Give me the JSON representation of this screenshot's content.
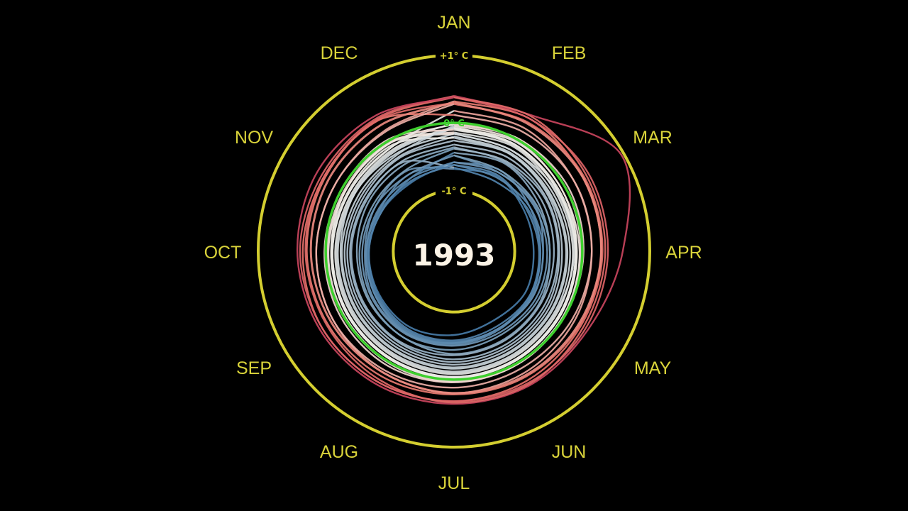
{
  "year": "1993",
  "rings": [
    {
      "label": "+1° C",
      "value": 1,
      "color": "#d4ce30"
    },
    {
      "label": "0° C",
      "value": 0,
      "color": "#3ecf2e"
    },
    {
      "label": "-1° C",
      "value": -1,
      "color": "#d4ce30"
    }
  ],
  "months": [
    "JAN",
    "FEB",
    "MAR",
    "APR",
    "MAY",
    "JUN",
    "JUL",
    "AUG",
    "SEP",
    "OCT",
    "NOV",
    "DEC"
  ],
  "colors": {
    "background": "#000000",
    "ring_outer": "#d4ce30",
    "ring_zero": "#3ecf2e",
    "month_text": "#d9d33a",
    "year_text": "#fbf3e6",
    "cool": "#2f6c9e",
    "neutral": "#f3efe8",
    "warm": "#e8756b",
    "hot": "#c33a5a"
  },
  "chart_data": {
    "type": "line",
    "subtype": "polar-spiral",
    "title": "",
    "theta": [
      "JAN",
      "FEB",
      "MAR",
      "APR",
      "MAY",
      "JUN",
      "JUL",
      "AUG",
      "SEP",
      "OCT",
      "NOV",
      "DEC"
    ],
    "r_range": [
      -1.9,
      1.0
    ],
    "r_ticks": [
      -1,
      0,
      1
    ],
    "series": [
      {
        "year": 1880,
        "values": [
          -0.48,
          -0.56,
          -0.52,
          -0.58,
          -0.55,
          -0.58,
          -0.54,
          -0.5,
          -0.52,
          -0.58,
          -0.56,
          -0.52
        ]
      },
      {
        "year": 1884,
        "values": [
          -0.68,
          -0.62,
          -0.7,
          -0.72,
          -0.68,
          -0.72,
          -0.66,
          -0.6,
          -0.62,
          -0.64,
          -0.68,
          -0.7
        ]
      },
      {
        "year": 1888,
        "values": [
          -0.58,
          -0.52,
          -0.6,
          -0.62,
          -0.58,
          -0.56,
          -0.52,
          -0.5,
          -0.56,
          -0.6,
          -0.64,
          -0.58
        ]
      },
      {
        "year": 1892,
        "values": [
          -0.62,
          -0.6,
          -0.66,
          -0.64,
          -0.6,
          -0.58,
          -0.56,
          -0.54,
          -0.58,
          -0.62,
          -0.68,
          -0.64
        ]
      },
      {
        "year": 1896,
        "values": [
          -0.44,
          -0.4,
          -0.46,
          -0.48,
          -0.42,
          -0.4,
          -0.38,
          -0.42,
          -0.44,
          -0.46,
          -0.44,
          -0.42
        ]
      },
      {
        "year": 1900,
        "values": [
          -0.36,
          -0.38,
          -0.4,
          -0.42,
          -0.4,
          -0.38,
          -0.36,
          -0.34,
          -0.36,
          -0.38,
          -0.4,
          -0.38
        ]
      },
      {
        "year": 1904,
        "values": [
          -0.66,
          -0.7,
          -0.64,
          -0.62,
          -0.6,
          -0.62,
          -0.58,
          -0.56,
          -0.6,
          -0.64,
          -0.66,
          -0.68
        ]
      },
      {
        "year": 1908,
        "values": [
          -0.62,
          -0.64,
          -0.6,
          -0.58,
          -0.56,
          -0.58,
          -0.54,
          -0.52,
          -0.56,
          -0.6,
          -0.62,
          -0.64
        ]
      },
      {
        "year": 1912,
        "values": [
          -0.58,
          -0.56,
          -0.54,
          -0.52,
          -0.5,
          -0.52,
          -0.5,
          -0.48,
          -0.5,
          -0.54,
          -0.56,
          -0.58
        ]
      },
      {
        "year": 1916,
        "values": [
          -0.48,
          -0.52,
          -0.5,
          -0.48,
          -0.46,
          -0.48,
          -0.44,
          -0.42,
          -0.46,
          -0.5,
          -0.52,
          -0.5
        ]
      },
      {
        "year": 1920,
        "values": [
          -0.38,
          -0.36,
          -0.34,
          -0.36,
          -0.34,
          -0.32,
          -0.3,
          -0.32,
          -0.34,
          -0.36,
          -0.38,
          -0.36
        ]
      },
      {
        "year": 1924,
        "values": [
          -0.32,
          -0.3,
          -0.32,
          -0.34,
          -0.3,
          -0.28,
          -0.26,
          -0.28,
          -0.3,
          -0.32,
          -0.34,
          -0.3
        ]
      },
      {
        "year": 1928,
        "values": [
          -0.26,
          -0.24,
          -0.28,
          -0.3,
          -0.26,
          -0.24,
          -0.22,
          -0.24,
          -0.26,
          -0.28,
          -0.3,
          -0.28
        ]
      },
      {
        "year": 1932,
        "values": [
          -0.2,
          -0.22,
          -0.24,
          -0.22,
          -0.2,
          -0.18,
          -0.16,
          -0.18,
          -0.2,
          -0.22,
          -0.2,
          -0.22
        ]
      },
      {
        "year": 1936,
        "values": [
          -0.16,
          -0.18,
          -0.14,
          -0.12,
          -0.14,
          -0.12,
          -0.1,
          -0.12,
          -0.14,
          -0.16,
          -0.18,
          -0.16
        ]
      },
      {
        "year": 1940,
        "values": [
          -0.08,
          -0.04,
          -0.06,
          -0.08,
          -0.06,
          -0.04,
          -0.02,
          -0.04,
          -0.06,
          -0.08,
          -0.06,
          -0.04
        ]
      },
      {
        "year": 1944,
        "values": [
          -0.02,
          0.02,
          0.0,
          -0.02,
          0.0,
          0.02,
          0.04,
          0.02,
          0.0,
          -0.02,
          -0.04,
          -0.02
        ]
      },
      {
        "year": 1948,
        "values": [
          -0.14,
          -0.12,
          -0.16,
          -0.14,
          -0.12,
          -0.1,
          -0.08,
          -0.1,
          -0.12,
          -0.14,
          -0.16,
          -0.14
        ]
      },
      {
        "year": 1952,
        "values": [
          -0.06,
          -0.08,
          -0.1,
          -0.08,
          -0.06,
          -0.04,
          -0.02,
          -0.04,
          -0.06,
          -0.08,
          -0.1,
          -0.08
        ]
      },
      {
        "year": 1956,
        "values": [
          -0.22,
          -0.24,
          -0.26,
          -0.24,
          -0.22,
          -0.2,
          -0.18,
          -0.2,
          -0.22,
          -0.24,
          -0.26,
          -0.24
        ]
      },
      {
        "year": 1960,
        "values": [
          -0.04,
          -0.02,
          -0.06,
          -0.04,
          -0.02,
          0.0,
          0.02,
          0.0,
          -0.02,
          -0.04,
          -0.06,
          -0.04
        ]
      },
      {
        "year": 1964,
        "values": [
          -0.16,
          -0.18,
          -0.2,
          -0.18,
          -0.16,
          -0.14,
          -0.12,
          -0.14,
          -0.16,
          -0.18,
          -0.2,
          -0.18
        ]
      },
      {
        "year": 1968,
        "values": [
          -0.08,
          -0.1,
          -0.12,
          -0.1,
          -0.08,
          -0.06,
          -0.04,
          -0.06,
          -0.08,
          -0.1,
          -0.12,
          -0.1
        ]
      },
      {
        "year": 1972,
        "values": [
          0.0,
          0.02,
          0.04,
          0.02,
          0.0,
          0.02,
          0.04,
          0.06,
          0.04,
          0.02,
          0.0,
          0.02
        ]
      },
      {
        "year": 1976,
        "values": [
          -0.1,
          -0.08,
          -0.12,
          -0.1,
          -0.08,
          -0.06,
          -0.04,
          -0.06,
          -0.08,
          -0.1,
          -0.12,
          -0.1
        ]
      },
      {
        "year": 1980,
        "values": [
          0.18,
          0.2,
          0.16,
          0.14,
          0.16,
          0.18,
          0.2,
          0.18,
          0.16,
          0.14,
          0.12,
          0.16
        ]
      },
      {
        "year": 1983,
        "values": [
          0.32,
          0.36,
          0.3,
          0.28,
          0.26,
          0.24,
          0.22,
          0.24,
          0.26,
          0.28,
          0.3,
          0.34
        ]
      },
      {
        "year": 1985,
        "values": [
          0.12,
          0.14,
          0.16,
          0.14,
          0.12,
          0.1,
          0.12,
          0.14,
          0.16,
          0.14,
          0.12,
          0.14
        ]
      },
      {
        "year": 1987,
        "values": [
          0.28,
          0.3,
          0.32,
          0.3,
          0.28,
          0.3,
          0.32,
          0.34,
          0.36,
          0.34,
          0.32,
          0.36
        ]
      },
      {
        "year": 1988,
        "values": [
          0.38,
          0.36,
          0.4,
          0.38,
          0.36,
          0.34,
          0.32,
          0.34,
          0.36,
          0.38,
          0.36,
          0.38
        ]
      },
      {
        "year": 1990,
        "values": [
          0.4,
          0.42,
          0.96,
          0.6,
          0.4,
          0.38,
          0.36,
          0.38,
          0.4,
          0.42,
          0.44,
          0.42
        ]
      },
      {
        "year": 1991,
        "values": [
          0.38,
          0.4,
          0.36,
          0.34,
          0.32,
          0.36,
          0.34,
          0.3,
          0.28,
          0.3,
          0.32,
          0.34
        ]
      },
      {
        "year": 1993,
        "values": [
          0.3,
          0.28,
          0.3,
          0.28,
          0.24,
          0.22,
          0.2,
          0.18,
          0.2,
          0.22,
          0.24,
          0.26
        ]
      }
    ]
  }
}
